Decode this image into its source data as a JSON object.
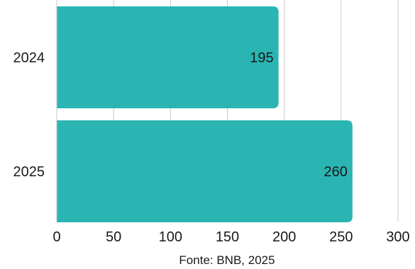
{
  "chart_data": {
    "type": "bar",
    "orientation": "horizontal",
    "categories": [
      "2024",
      "2025"
    ],
    "values": [
      195,
      260
    ],
    "data_labels": [
      "195",
      "260"
    ],
    "xlim": [
      0,
      300
    ],
    "x_ticks": [
      "0",
      "50",
      "100",
      "150",
      "200",
      "250",
      "300"
    ],
    "grid": "vertical gridlines",
    "bar_color": "#2ab5b3",
    "source": "Fonte: BNB, 2025"
  }
}
